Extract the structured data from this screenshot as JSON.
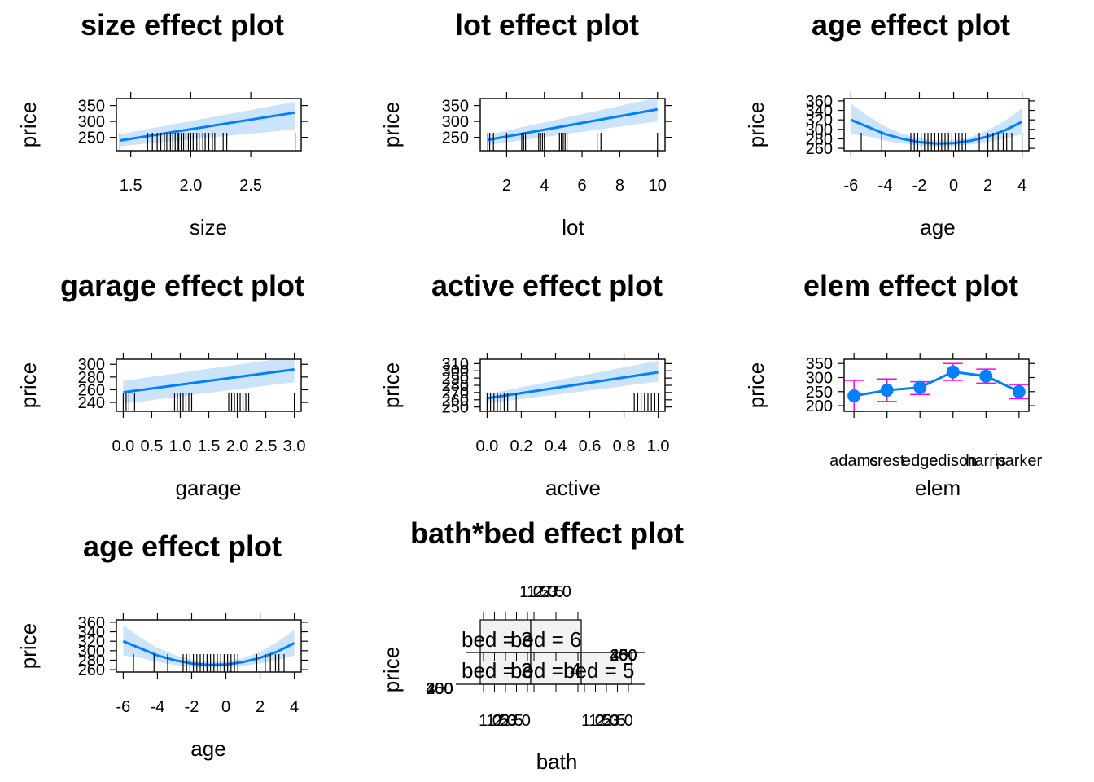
{
  "colors": {
    "line": "#0080ff",
    "band": "#cce4fb",
    "errorbar": "#ff00ff",
    "rug": "#000000",
    "strip": "#f2f2f2"
  },
  "chart_data": [
    {
      "type": "line",
      "title": "size effect plot",
      "xlabel": "size",
      "ylabel": "price",
      "xlim": [
        1.38,
        2.92
      ],
      "ylim": [
        208,
        372
      ],
      "xticks": [
        {
          "v": 1.5,
          "label": "1.5"
        },
        {
          "v": 2.0,
          "label": "2.0"
        },
        {
          "v": 2.5,
          "label": "2.5"
        }
      ],
      "yticks": [
        {
          "v": 250,
          "label": "250"
        },
        {
          "v": 300,
          "label": "300"
        },
        {
          "v": 350,
          "label": "350"
        }
      ],
      "x": [
        1.41,
        2.87
      ],
      "y": [
        240,
        328
      ],
      "lower": [
        222,
        275
      ],
      "upper": [
        260,
        362
      ],
      "rug": [
        1.41,
        1.64,
        1.68,
        1.72,
        1.75,
        1.78,
        1.8,
        1.83,
        1.85,
        1.87,
        1.89,
        1.9,
        1.92,
        1.94,
        1.96,
        1.98,
        2.0,
        2.02,
        2.05,
        2.07,
        2.1,
        2.12,
        2.15,
        2.18,
        2.2,
        2.27,
        2.3,
        2.87
      ]
    },
    {
      "type": "line",
      "title": "lot effect plot",
      "xlabel": "lot",
      "ylabel": "price",
      "xlim": [
        0.6,
        10.4
      ],
      "ylim": [
        208,
        372
      ],
      "xticks": [
        {
          "v": 2,
          "label": "2"
        },
        {
          "v": 4,
          "label": "4"
        },
        {
          "v": 6,
          "label": "6"
        },
        {
          "v": 8,
          "label": "8"
        },
        {
          "v": 10,
          "label": "10"
        }
      ],
      "yticks": [
        {
          "v": 250,
          "label": "250"
        },
        {
          "v": 300,
          "label": "300"
        },
        {
          "v": 350,
          "label": "350"
        }
      ],
      "x": [
        1,
        10
      ],
      "y": [
        242,
        338
      ],
      "lower": [
        226,
        300
      ],
      "upper": [
        258,
        375
      ],
      "rug": [
        1,
        1.1,
        1.3,
        2,
        2.8,
        2.9,
        3,
        3.7,
        3.8,
        3.9,
        4,
        4.8,
        4.9,
        5,
        5.1,
        5.2,
        6.8,
        7,
        10
      ]
    },
    {
      "type": "line",
      "title": "age effect plot",
      "xlabel": "age",
      "ylabel": "price",
      "xlim": [
        -6.4,
        4.4
      ],
      "ylim": [
        255,
        365
      ],
      "xticks": [
        {
          "v": -6,
          "label": "-6"
        },
        {
          "v": -4,
          "label": "-4"
        },
        {
          "v": -2,
          "label": "-2"
        },
        {
          "v": 0,
          "label": "0"
        },
        {
          "v": 2,
          "label": "2"
        },
        {
          "v": 4,
          "label": "4"
        }
      ],
      "yticks": [
        {
          "v": 260,
          "label": "260"
        },
        {
          "v": 280,
          "label": "280"
        },
        {
          "v": 300,
          "label": "300"
        },
        {
          "v": 320,
          "label": "320"
        },
        {
          "v": 340,
          "label": "340"
        },
        {
          "v": 360,
          "label": "360"
        }
      ],
      "x": [
        -6,
        -5,
        -4,
        -3,
        -2,
        -1,
        0,
        1,
        2,
        3,
        4
      ],
      "y": [
        320,
        305,
        290,
        280,
        273,
        270,
        271,
        276,
        285,
        298,
        316
      ],
      "lower": [
        290,
        285,
        276,
        270,
        266,
        264,
        265,
        268,
        273,
        280,
        290
      ],
      "upper": [
        354,
        328,
        306,
        291,
        281,
        277,
        278,
        284,
        298,
        318,
        345
      ],
      "rug": [
        -5.4,
        -4.2,
        -2.5,
        -2.3,
        -2.1,
        -1.9,
        -1.7,
        -1.5,
        -1.3,
        -1.1,
        -0.9,
        -0.7,
        -0.5,
        -0.3,
        -0.1,
        0.1,
        0.3,
        0.5,
        0.7,
        1.5,
        2,
        2.3,
        2.6,
        2.9,
        3.1,
        3.4,
        4
      ]
    },
    {
      "type": "line",
      "title": "garage effect plot",
      "xlabel": "garage",
      "ylabel": "price",
      "xlim": [
        -0.12,
        3.12
      ],
      "ylim": [
        226,
        308
      ],
      "xticks": [
        {
          "v": 0,
          "label": "0.0"
        },
        {
          "v": 0.5,
          "label": "0.5"
        },
        {
          "v": 1,
          "label": "1.0"
        },
        {
          "v": 1.5,
          "label": "1.5"
        },
        {
          "v": 2,
          "label": "2.0"
        },
        {
          "v": 2.5,
          "label": "2.5"
        },
        {
          "v": 3,
          "label": "3.0"
        }
      ],
      "yticks": [
        {
          "v": 240,
          "label": "240"
        },
        {
          "v": 260,
          "label": "260"
        },
        {
          "v": 280,
          "label": "280"
        },
        {
          "v": 300,
          "label": "300"
        }
      ],
      "x": [
        0,
        3
      ],
      "y": [
        256,
        292
      ],
      "lower": [
        238,
        272
      ],
      "upper": [
        274,
        312
      ],
      "rug": [
        0,
        0.05,
        0.1,
        0.2,
        0.9,
        0.95,
        1,
        1.05,
        1.1,
        1.15,
        1.2,
        1.85,
        1.9,
        1.95,
        2,
        2.05,
        2.1,
        2.15,
        2.2,
        3
      ]
    },
    {
      "type": "line",
      "title": "active effect plot",
      "xlabel": "active",
      "ylabel": "price",
      "xlim": [
        -0.04,
        1.04
      ],
      "ylim": [
        244,
        316
      ],
      "xticks": [
        {
          "v": 0,
          "label": "0.0"
        },
        {
          "v": 0.2,
          "label": "0.2"
        },
        {
          "v": 0.4,
          "label": "0.4"
        },
        {
          "v": 0.6,
          "label": "0.6"
        },
        {
          "v": 0.8,
          "label": "0.8"
        },
        {
          "v": 1,
          "label": "1.0"
        }
      ],
      "yticks": [
        {
          "v": 250,
          "label": "250"
        },
        {
          "v": 260,
          "label": "260"
        },
        {
          "v": 270,
          "label": "270"
        },
        {
          "v": 280,
          "label": "280"
        },
        {
          "v": 290,
          "label": "290"
        },
        {
          "v": 300,
          "label": "300"
        },
        {
          "v": 310,
          "label": "310"
        }
      ],
      "x": [
        0,
        1
      ],
      "y": [
        262,
        298
      ],
      "lower": [
        255,
        285
      ],
      "upper": [
        268,
        314
      ],
      "rug": [
        0,
        0.02,
        0.04,
        0.06,
        0.08,
        0.1,
        0.12,
        0.17,
        0.86,
        0.88,
        0.9,
        0.92,
        0.94,
        0.96,
        0.98,
        1
      ]
    },
    {
      "type": "line",
      "title": "elem effect plot",
      "xlabel": "elem",
      "ylabel": "price",
      "categories": [
        "adams",
        "crest",
        "edge",
        "edison",
        "harris",
        "parker"
      ],
      "xlim": [
        0.7,
        6.3
      ],
      "ylim": [
        180,
        365
      ],
      "yticks": [
        {
          "v": 200,
          "label": "200"
        },
        {
          "v": 250,
          "label": "250"
        },
        {
          "v": 300,
          "label": "300"
        },
        {
          "v": 350,
          "label": "350"
        }
      ],
      "values": [
        235,
        255,
        265,
        320,
        305,
        250
      ],
      "lower": [
        180,
        215,
        240,
        290,
        280,
        225
      ],
      "upper": [
        290,
        295,
        285,
        350,
        330,
        275
      ]
    },
    {
      "type": "line",
      "title": "age effect plot",
      "xlabel": "age",
      "ylabel": "price",
      "xlim": [
        -6.4,
        4.4
      ],
      "ylim": [
        255,
        365
      ],
      "xticks": [
        {
          "v": -6,
          "label": "-6"
        },
        {
          "v": -4,
          "label": "-4"
        },
        {
          "v": -2,
          "label": "-2"
        },
        {
          "v": 0,
          "label": "0"
        },
        {
          "v": 2,
          "label": "2"
        },
        {
          "v": 4,
          "label": "4"
        }
      ],
      "yticks": [
        {
          "v": 260,
          "label": "260"
        },
        {
          "v": 280,
          "label": "280"
        },
        {
          "v": 300,
          "label": "300"
        },
        {
          "v": 320,
          "label": "320"
        },
        {
          "v": 340,
          "label": "340"
        },
        {
          "v": 360,
          "label": "360"
        }
      ],
      "x": [
        -6,
        -5,
        -4,
        -3,
        -2,
        -1,
        0,
        1,
        2,
        3,
        4
      ],
      "y": [
        320,
        305,
        290,
        280,
        273,
        270,
        271,
        276,
        285,
        298,
        316
      ],
      "lower": [
        290,
        285,
        276,
        270,
        266,
        264,
        265,
        268,
        273,
        280,
        290
      ],
      "upper": [
        354,
        328,
        306,
        291,
        281,
        277,
        278,
        284,
        298,
        318,
        345
      ],
      "rug": [
        -5.4,
        -4.2,
        -3.4,
        -2.5,
        -2.3,
        -2.1,
        -1.9,
        -1.7,
        -1.5,
        -1.3,
        -1.1,
        -0.9,
        -0.7,
        -0.5,
        -0.3,
        -0.1,
        0.1,
        0.3,
        0.5,
        0.7,
        1.8,
        2.3,
        2.6,
        2.9,
        3.1,
        3.4
      ]
    },
    {
      "type": "line",
      "title": "bath*bed effect plot",
      "xlabel": "bath",
      "ylabel": "price",
      "strips": [
        "bed = 3",
        "bed = 4",
        "bed = 5",
        "bed = 6"
      ],
      "tick_label_overlap": [
        "1.0",
        "1.5",
        "2.0",
        "2.5",
        "3.0"
      ],
      "ytick_label_overlap": [
        "200",
        "250",
        "300",
        "350",
        "400",
        "450"
      ]
    }
  ]
}
